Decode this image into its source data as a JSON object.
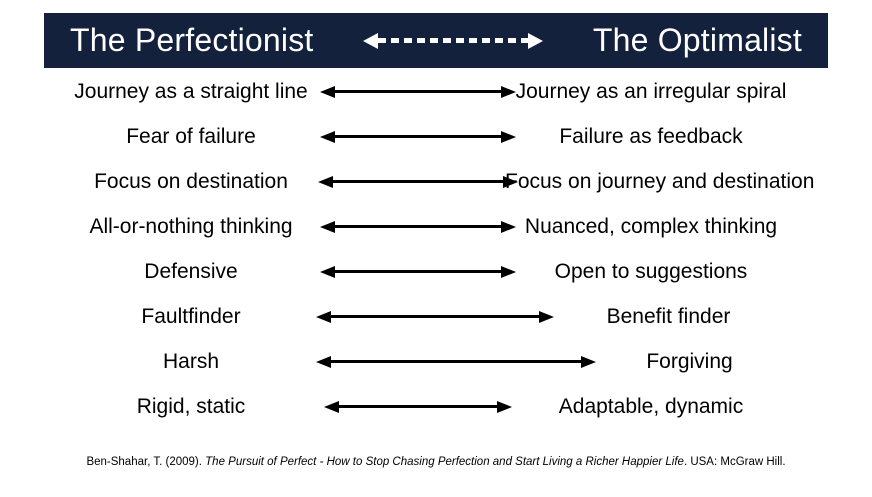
{
  "theme": {
    "header_bg": "#14213d",
    "header_text": "#ffffff",
    "body_text": "#000000",
    "arrow_color": "#000000"
  },
  "icons": {
    "header_arrow": "dashed-double-arrow",
    "row_arrow": "solid-double-arrow"
  },
  "header": {
    "left_title": "The Perfectionist",
    "right_title": "The Optimalist"
  },
  "rows": [
    {
      "left": "Journey as a straight line",
      "right": "Journey as an irregular spiral"
    },
    {
      "left": "Fear of failure",
      "right": "Failure as feedback"
    },
    {
      "left": "Focus on destination",
      "right": "Focus on journey and destination"
    },
    {
      "left": "All-or-nothing thinking",
      "right": "Nuanced, complex thinking"
    },
    {
      "left": "Defensive",
      "right": "Open to suggestions"
    },
    {
      "left": "Faultfinder",
      "right": "Benefit finder"
    },
    {
      "left": "Harsh",
      "right": "Forgiving"
    },
    {
      "left": "Rigid, static",
      "right": "Adaptable, dynamic"
    }
  ],
  "citation": {
    "prefix": "Ben-Shahar, T. (2009). ",
    "book_title": "The Pursuit of Perfect - How to Stop Chasing Perfection and Start Living a Richer Happier Life",
    "suffix": ". USA: McGraw Hill."
  }
}
